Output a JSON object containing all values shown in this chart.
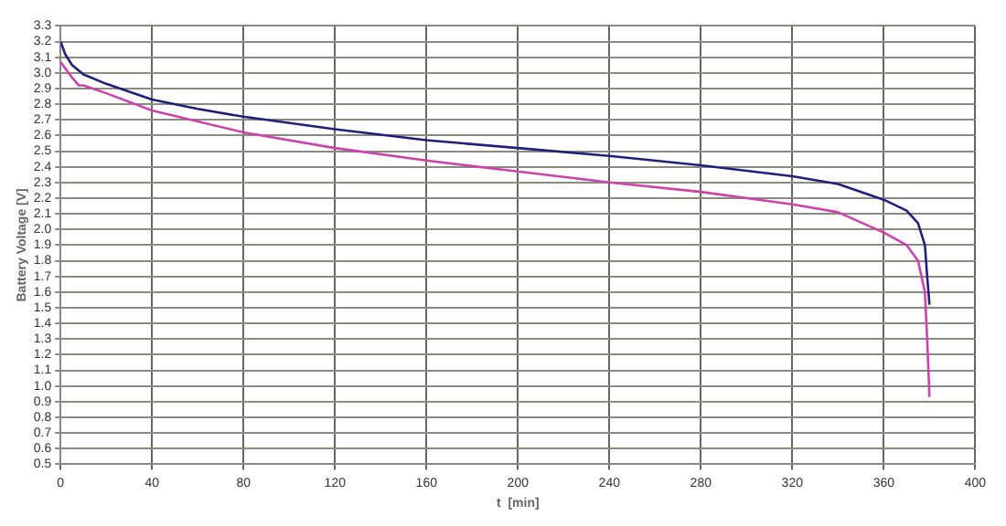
{
  "chart_data": {
    "type": "line",
    "xlabel": "t  [min]",
    "ylabel": "Battery Voltage [V]",
    "xlim": [
      0,
      400
    ],
    "xticks": [
      0,
      40,
      80,
      120,
      160,
      200,
      240,
      280,
      320,
      360,
      400
    ],
    "ylim": [
      0.5,
      3.3
    ],
    "yticks": [
      {
        "value": 0.5,
        "label": "0.5"
      },
      {
        "value": 0.6,
        "label": "0.6"
      },
      {
        "value": 0.7,
        "label": "0.7"
      },
      {
        "value": 0.8,
        "label": "0.8"
      },
      {
        "value": 0.9,
        "label": "0.9"
      },
      {
        "value": 1.0,
        "label": "1.0"
      },
      {
        "value": 1.1,
        "label": "1.1"
      },
      {
        "value": 1.2,
        "label": "1.2"
      },
      {
        "value": 1.3,
        "label": "1.3"
      },
      {
        "value": 1.4,
        "label": "1.4"
      },
      {
        "value": 1.5,
        "label": "1.5"
      },
      {
        "value": 1.6,
        "label": "1.6"
      },
      {
        "value": 1.7,
        "label": "1.7"
      },
      {
        "value": 1.8,
        "label": "1.8"
      },
      {
        "value": 1.9,
        "label": "1.9"
      },
      {
        "value": 2.0,
        "label": "2.0"
      },
      {
        "value": 2.1,
        "label": "2.1"
      },
      {
        "value": 2.2,
        "label": "2.2"
      },
      {
        "value": 2.3,
        "label": "2.3"
      },
      {
        "value": 2.4,
        "label": "2.4"
      },
      {
        "value": 2.5,
        "label": "2.5"
      },
      {
        "value": 2.6,
        "label": "2.6"
      },
      {
        "value": 2.7,
        "label": "2.7"
      },
      {
        "value": 2.8,
        "label": "2.8"
      },
      {
        "value": 2.9,
        "label": "2.9"
      },
      {
        "value": 3.0,
        "label": "3.0"
      },
      {
        "value": 3.1,
        "label": "3.1"
      },
      {
        "value": 3.2,
        "label": "3.2"
      },
      {
        "value": 3.3,
        "label": "3.3"
      }
    ],
    "grid": true,
    "legend": false,
    "marker": "none",
    "line_style": "solid",
    "series": [
      {
        "color": "#20207a",
        "x": [
          0,
          2,
          5,
          10,
          20,
          40,
          60,
          80,
          120,
          160,
          200,
          240,
          280,
          320,
          340,
          360,
          370,
          375,
          378,
          379,
          380
        ],
        "values": [
          3.2,
          3.12,
          3.05,
          2.99,
          2.93,
          2.83,
          2.77,
          2.72,
          2.64,
          2.57,
          2.52,
          2.47,
          2.41,
          2.34,
          2.29,
          2.19,
          2.12,
          2.04,
          1.9,
          1.7,
          1.52
        ]
      },
      {
        "color": "#cc44aa",
        "x": [
          0,
          5,
          8,
          10,
          20,
          40,
          80,
          120,
          160,
          200,
          240,
          280,
          320,
          340,
          360,
          370,
          375,
          378,
          379,
          380
        ],
        "values": [
          3.07,
          2.97,
          2.92,
          2.92,
          2.87,
          2.76,
          2.62,
          2.52,
          2.44,
          2.37,
          2.3,
          2.24,
          2.16,
          2.11,
          1.98,
          1.9,
          1.8,
          1.6,
          1.3,
          0.93
        ]
      }
    ]
  }
}
